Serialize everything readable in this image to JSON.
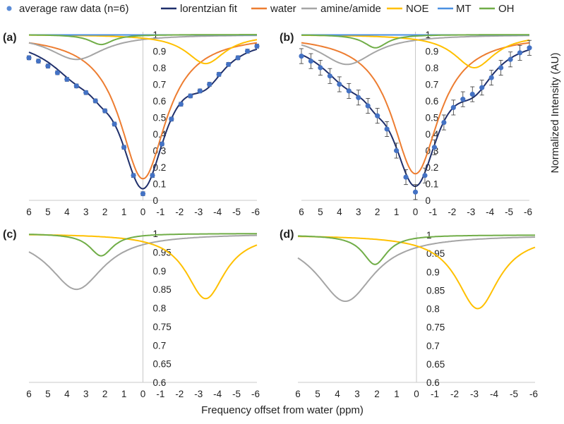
{
  "legend": [
    {
      "label": "average raw data (n=6)",
      "color": "#5B8BD6",
      "kind": "dot"
    },
    {
      "label": "lorentzian fit",
      "color": "#1F2F6B",
      "kind": "line"
    },
    {
      "label": "water",
      "color": "#ED7D31",
      "kind": "line"
    },
    {
      "label": "amine/amide",
      "color": "#A5A5A5",
      "kind": "line"
    },
    {
      "label": "NOE",
      "color": "#FFC000",
      "kind": "line"
    },
    {
      "label": "MT",
      "color": "#4A90E2",
      "kind": "line"
    },
    {
      "label": "OH",
      "color": "#70AD47",
      "kind": "line"
    }
  ],
  "xlabel": "Frequency offset from water (ppm)",
  "ylabel": "Normalized Intensity (AU)",
  "chart_data": [
    {
      "id": "a",
      "panel_label": "(a)",
      "type": "line",
      "xlim": [
        6,
        -6
      ],
      "ylim": [
        0,
        1
      ],
      "xticks": [
        "6",
        "5",
        "4",
        "3",
        "2",
        "1",
        "0",
        "-1",
        "-2",
        "-3",
        "-4",
        "-5",
        "-6"
      ],
      "yticks": [
        "0",
        "0.1",
        "0.2",
        "0.3",
        "0.4",
        "0.5",
        "0.6",
        "0.7",
        "0.8",
        "0.9",
        "1"
      ],
      "raw_x": [
        6,
        5.5,
        5,
        4.5,
        4,
        3.5,
        3,
        2.5,
        2,
        1.5,
        1,
        0.5,
        0,
        -0.5,
        -1,
        -1.5,
        -2,
        -2.5,
        -3,
        -3.5,
        -4,
        -4.5,
        -5,
        -5.5,
        -6
      ],
      "raw_y": [
        0.86,
        0.84,
        0.81,
        0.77,
        0.73,
        0.69,
        0.65,
        0.6,
        0.54,
        0.46,
        0.32,
        0.15,
        0.04,
        0.15,
        0.34,
        0.49,
        0.58,
        0.63,
        0.66,
        0.7,
        0.76,
        0.82,
        0.86,
        0.9,
        0.93
      ],
      "raw_err": 0.012,
      "show_fit": true,
      "pools": [
        {
          "name": "water",
          "amplitude": 0.87,
          "offset_ppm": 0,
          "width_ppm": 2.96
        },
        {
          "name": "amine/amide",
          "amplitude": 0.15,
          "offset_ppm": 3.5,
          "width_ppm": 3.5
        },
        {
          "name": "NOE",
          "amplitude": 0.175,
          "offset_ppm": -3.3,
          "width_ppm": 2.5
        },
        {
          "name": "MT",
          "amplitude": 0.002,
          "offset_ppm": 0,
          "width_ppm": 60
        },
        {
          "name": "OH",
          "amplitude": 0.06,
          "offset_ppm": 2.2,
          "width_ppm": 1.5
        }
      ]
    },
    {
      "id": "b",
      "panel_label": "(b)",
      "type": "line",
      "xlim": [
        6,
        -6
      ],
      "ylim": [
        0,
        1
      ],
      "xticks": [
        "6",
        "5",
        "4",
        "3",
        "2",
        "1",
        "0",
        "-1",
        "-2",
        "-3",
        "-4",
        "-5",
        "-6"
      ],
      "yticks": [
        "0",
        "0.1",
        "0.2",
        "0.3",
        "0.4",
        "0.5",
        "0.6",
        "0.7",
        "0.8",
        "0.9",
        "1"
      ],
      "raw_x": [
        6,
        5.5,
        5,
        4.5,
        4,
        3.5,
        3,
        2.5,
        2,
        1.5,
        1,
        0.5,
        0,
        -0.5,
        -1,
        -1.5,
        -2,
        -2.5,
        -3,
        -3.5,
        -4,
        -4.5,
        -5,
        -5.5,
        -6
      ],
      "raw_y": [
        0.87,
        0.84,
        0.8,
        0.75,
        0.7,
        0.66,
        0.62,
        0.57,
        0.51,
        0.43,
        0.3,
        0.14,
        0.05,
        0.15,
        0.32,
        0.47,
        0.56,
        0.61,
        0.64,
        0.68,
        0.74,
        0.8,
        0.85,
        0.89,
        0.92
      ],
      "raw_err": 0.045,
      "show_fit": true,
      "pools": [
        {
          "name": "water",
          "amplitude": 0.84,
          "offset_ppm": 0,
          "width_ppm": 3.0
        },
        {
          "name": "amine/amide",
          "amplitude": 0.18,
          "offset_ppm": 3.6,
          "width_ppm": 3.5
        },
        {
          "name": "NOE",
          "amplitude": 0.2,
          "offset_ppm": -3.1,
          "width_ppm": 2.6
        },
        {
          "name": "MT",
          "amplitude": 0.002,
          "offset_ppm": 0,
          "width_ppm": 60
        },
        {
          "name": "OH",
          "amplitude": 0.08,
          "offset_ppm": 2.1,
          "width_ppm": 1.5
        }
      ]
    },
    {
      "id": "c",
      "panel_label": "(c)",
      "type": "line",
      "xlim": [
        6,
        -6
      ],
      "ylim": [
        0.6,
        1
      ],
      "xticks": [
        "6",
        "5",
        "4",
        "3",
        "2",
        "1",
        "0",
        "-1",
        "-2",
        "-3",
        "-4",
        "-5",
        "-6"
      ],
      "yticks": [
        "0.6",
        "0.65",
        "0.7",
        "0.75",
        "0.8",
        "0.85",
        "0.9",
        "0.95",
        "1"
      ],
      "show_fit": false,
      "pools": [
        {
          "name": "amine/amide",
          "amplitude": 0.15,
          "offset_ppm": 3.5,
          "width_ppm": 3.5
        },
        {
          "name": "NOE",
          "amplitude": 0.175,
          "offset_ppm": -3.3,
          "width_ppm": 2.5
        },
        {
          "name": "OH",
          "amplitude": 0.06,
          "offset_ppm": 2.2,
          "width_ppm": 1.5
        }
      ]
    },
    {
      "id": "d",
      "panel_label": "(d)",
      "type": "line",
      "xlim": [
        6,
        -6
      ],
      "ylim": [
        0.6,
        1
      ],
      "xticks": [
        "6",
        "5",
        "4",
        "3",
        "2",
        "1",
        "0",
        "-1",
        "-2",
        "-3",
        "-4",
        "-5",
        "-6"
      ],
      "yticks": [
        "0.6",
        "0.65",
        "0.7",
        "0.75",
        "0.8",
        "0.85",
        "0.9",
        "0.95",
        "1"
      ],
      "show_fit": false,
      "pools": [
        {
          "name": "amine/amide",
          "amplitude": 0.18,
          "offset_ppm": 3.6,
          "width_ppm": 3.5
        },
        {
          "name": "NOE",
          "amplitude": 0.2,
          "offset_ppm": -3.1,
          "width_ppm": 2.6
        },
        {
          "name": "OH",
          "amplitude": 0.08,
          "offset_ppm": 2.1,
          "width_ppm": 1.5
        }
      ]
    }
  ]
}
